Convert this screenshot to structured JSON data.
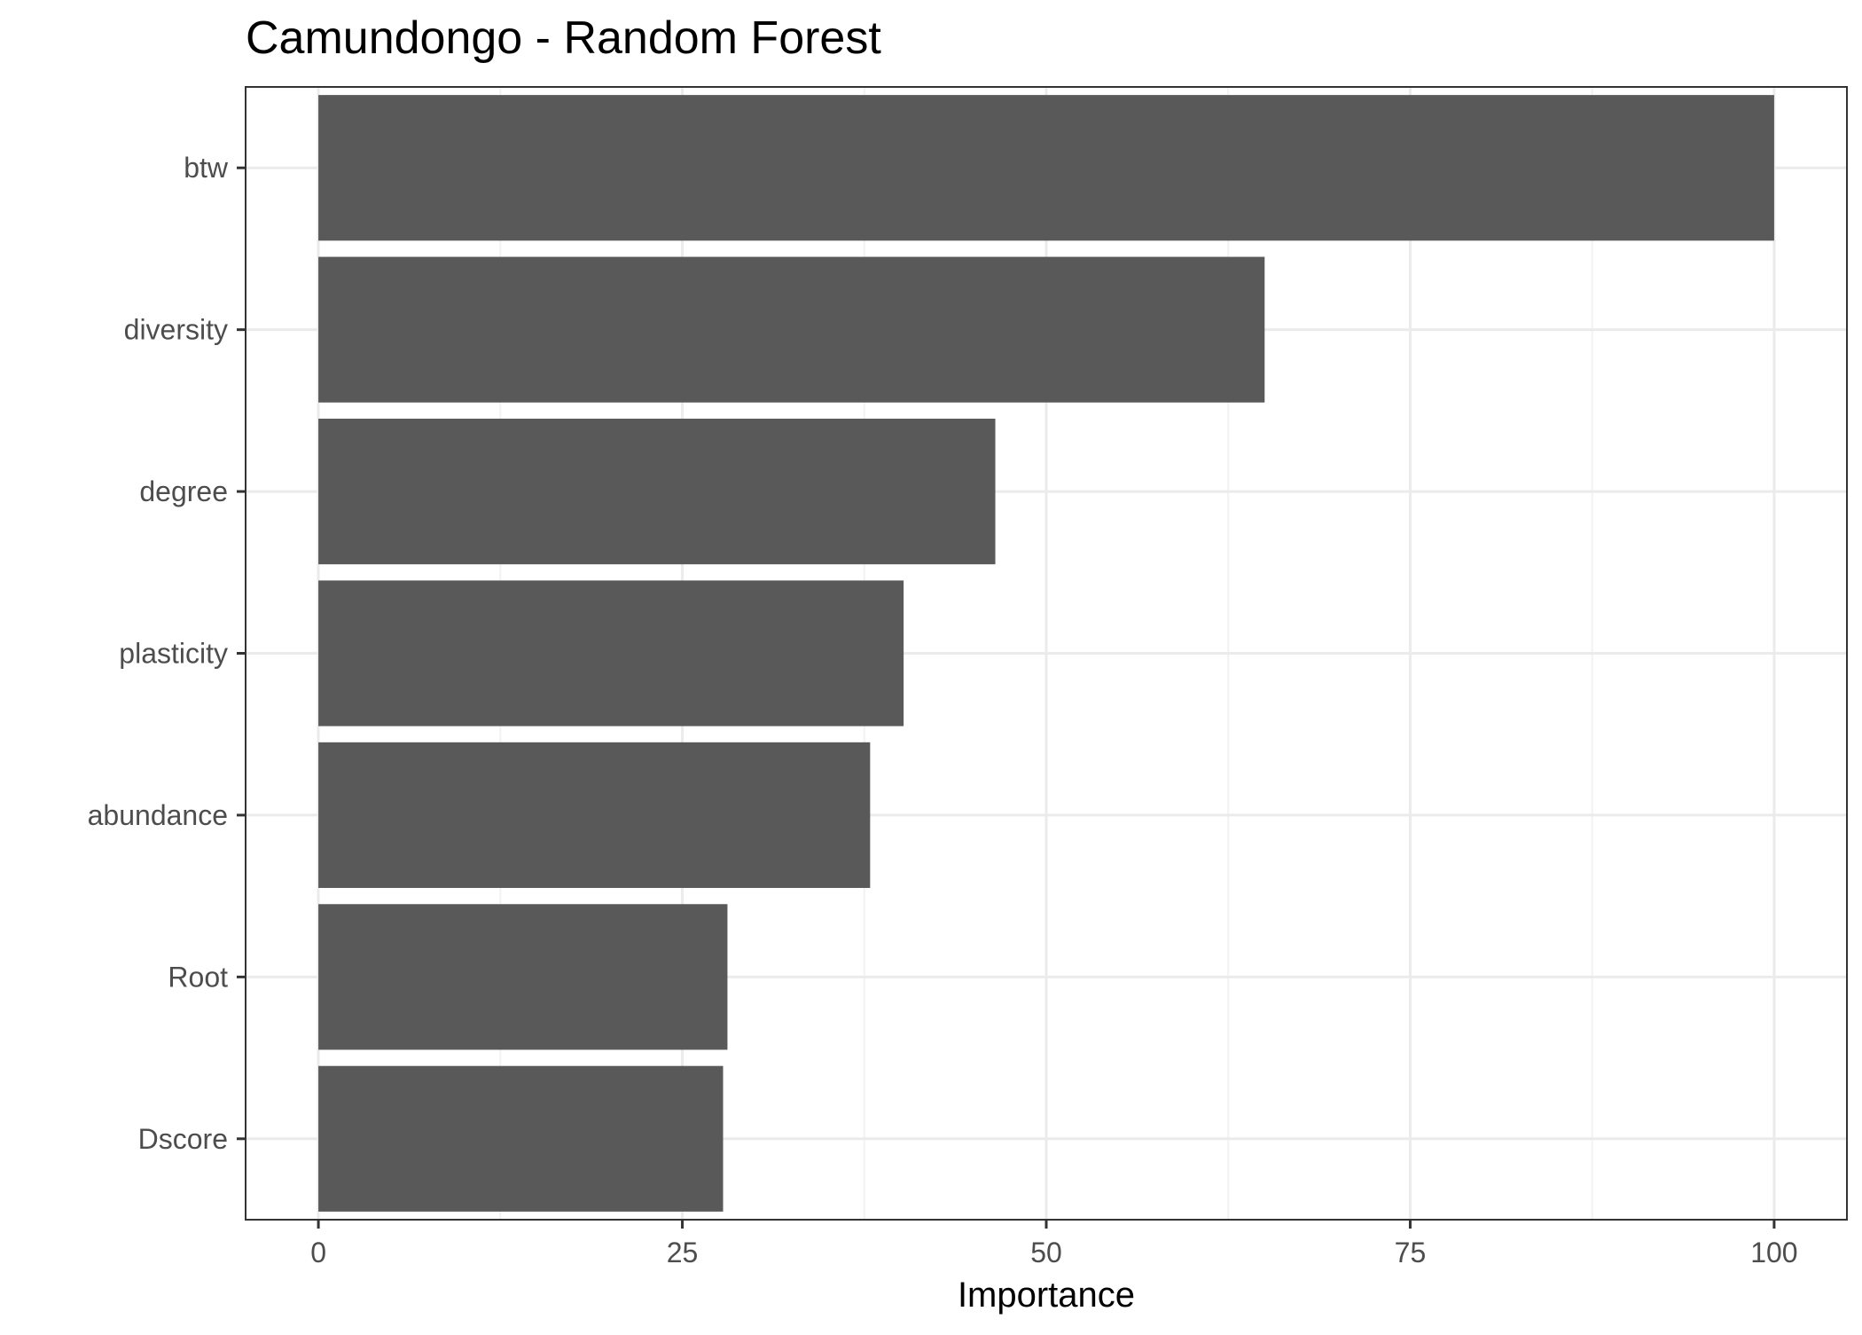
{
  "chart_data": {
    "type": "bar",
    "orientation": "horizontal",
    "title": "Camundongo - Random Forest",
    "xlabel": "Importance",
    "ylabel": "",
    "categories": [
      "btw",
      "diversity",
      "degree",
      "plasticity",
      "abundance",
      "Root",
      "Dscore"
    ],
    "values": [
      100,
      65.0,
      46.5,
      40.2,
      37.9,
      28.1,
      27.8
    ],
    "xlim": [
      -5,
      105
    ],
    "xticks": [
      0,
      25,
      50,
      75,
      100
    ],
    "xtick_labels": [
      "0",
      "25",
      "50",
      "75",
      "100"
    ],
    "grid": true,
    "legend": "none",
    "colors": {
      "bar": "#595959",
      "panel_border": "#333333",
      "grid_major": "#ebebeb",
      "grid_minor": "#f2f2f2",
      "tick_text": "#4d4d4d",
      "title_text": "#000000"
    }
  }
}
